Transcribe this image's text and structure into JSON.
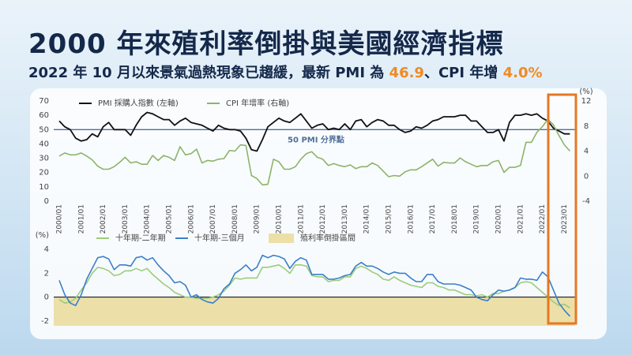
{
  "title": "2000 年來殖利率倒掛與美國經濟指標",
  "subtitle": [
    "2022 年 10 月以來景氣過熱現象已趨緩，最新 PMI 為 ",
    "46.9",
    "、CPI 年增 ",
    "4.0%"
  ],
  "chart_data": [
    {
      "type": "line",
      "x": [
        "2000/01",
        "2000/04",
        "2000/07",
        "2000/10",
        "2001/01",
        "2001/04",
        "2001/07",
        "2001/10",
        "2002/01",
        "2002/04",
        "2002/07",
        "2002/10",
        "2003/01",
        "2003/04",
        "2003/07",
        "2003/10",
        "2004/01",
        "2004/04",
        "2004/07",
        "2004/10",
        "2005/01",
        "2005/04",
        "2005/07",
        "2005/10",
        "2006/01",
        "2006/04",
        "2006/07",
        "2006/10",
        "2007/01",
        "2007/04",
        "2007/07",
        "2007/10",
        "2008/01",
        "2008/04",
        "2008/07",
        "2008/10",
        "2009/01",
        "2009/04",
        "2009/07",
        "2009/10",
        "2010/01",
        "2010/04",
        "2010/07",
        "2010/10",
        "2011/01",
        "2011/04",
        "2011/07",
        "2011/10",
        "2012/01",
        "2012/04",
        "2012/07",
        "2012/10",
        "2013/01",
        "2013/04",
        "2013/07",
        "2013/10",
        "2014/01",
        "2014/04",
        "2014/07",
        "2014/10",
        "2015/01",
        "2015/04",
        "2015/07",
        "2015/10",
        "2016/01",
        "2016/04",
        "2016/07",
        "2016/10",
        "2017/01",
        "2017/04",
        "2017/07",
        "2017/10",
        "2018/01",
        "2018/04",
        "2018/07",
        "2018/10",
        "2019/01",
        "2019/04",
        "2019/07",
        "2019/10",
        "2020/01",
        "2020/04",
        "2020/07",
        "2020/10",
        "2021/01",
        "2021/04",
        "2021/07",
        "2021/10",
        "2022/01",
        "2022/04",
        "2022/07",
        "2022/10",
        "2023/01",
        "2023/04"
      ],
      "xticks": [
        "2000/01",
        "2001/01",
        "2002/01",
        "2003/01",
        "2004/01",
        "2005/01",
        "2006/01",
        "2007/01",
        "2008/01",
        "2009/01",
        "2010/01",
        "2011/01",
        "2012/01",
        "2013/01",
        "2014/01",
        "2015/01",
        "2016/01",
        "2017/01",
        "2018/01",
        "2019/01",
        "2020/01",
        "2021/01",
        "2022/01",
        "2023/01"
      ],
      "ylim": [
        0,
        70
      ],
      "yticks": [
        0,
        10,
        20,
        30,
        40,
        50,
        60,
        70
      ],
      "y2lim": [
        -4,
        12
      ],
      "y2ticks": [
        -4,
        0,
        4,
        8,
        12
      ],
      "y2_unit": "(%)",
      "ref_line": {
        "value": 50,
        "label": "50 PMI 分界點",
        "color": "#4f6f9a"
      },
      "series": [
        {
          "name": "PMI 採購人指數 (左軸)",
          "color": "#111111",
          "values": [
            56,
            52,
            50,
            44,
            42,
            43,
            47,
            45,
            52,
            55,
            50,
            50,
            50,
            46,
            53,
            59,
            62,
            61,
            59,
            57,
            57,
            53,
            56,
            58,
            55,
            54,
            53,
            51,
            49,
            53,
            51,
            50,
            50,
            49,
            44,
            36,
            35,
            43,
            52,
            55,
            58,
            56,
            55,
            58,
            61,
            56,
            51,
            53,
            54,
            50,
            51,
            50,
            54,
            50,
            56,
            57,
            52,
            55,
            57,
            56,
            53,
            53,
            50,
            48,
            49,
            52,
            51,
            53,
            56,
            57,
            59,
            59,
            59,
            60,
            60,
            56,
            56,
            52,
            48,
            48,
            50,
            42,
            55,
            60,
            60,
            61,
            60,
            61,
            58,
            56,
            51,
            49,
            47,
            47
          ]
        },
        {
          "name": "CPI 年增率 (右軸)",
          "color": "#8db36a",
          "axis": "y2",
          "values": [
            3.2,
            3.7,
            3.4,
            3.4,
            3.7,
            3.2,
            2.6,
            1.6,
            1.1,
            1.1,
            1.5,
            2.2,
            3.0,
            2.1,
            2.3,
            1.9,
            1.9,
            3.3,
            2.5,
            3.3,
            3.0,
            2.5,
            4.7,
            3.4,
            3.6,
            4.3,
            2.1,
            2.5,
            2.4,
            2.7,
            2.8,
            4.1,
            4.0,
            5.0,
            4.9,
            0.1,
            -0.4,
            -1.4,
            -1.3,
            2.7,
            2.3,
            1.1,
            1.1,
            1.5,
            2.7,
            3.6,
            3.9,
            3.0,
            2.7,
            1.7,
            2.0,
            1.7,
            1.5,
            1.8,
            1.2,
            1.5,
            1.5,
            2.1,
            1.7,
            0.8,
            -0.1,
            0.1,
            0.0,
            0.7,
            1.0,
            1.0,
            1.5,
            2.1,
            2.7,
            1.6,
            2.2,
            2.1,
            2.1,
            2.9,
            2.3,
            1.9,
            1.5,
            1.7,
            1.7,
            2.3,
            2.5,
            0.6,
            1.4,
            1.4,
            1.7,
            5.4,
            5.4,
            7.0,
            7.9,
            9.1,
            8.2,
            6.5,
            5.0,
            4.0
          ]
        }
      ]
    },
    {
      "type": "line",
      "ylim": [
        -2.4,
        4.4
      ],
      "yticks": [
        -2,
        0,
        2,
        4
      ],
      "y_unit": "(%)",
      "band": {
        "name": "殖利率倒掛區間",
        "color": "#ecdfa8"
      },
      "series": [
        {
          "name": "十年期-二年期",
          "color": "#9ccc7a",
          "values": [
            -0.2,
            -0.5,
            -0.4,
            -0.1,
            0.6,
            1.2,
            2.0,
            2.5,
            2.4,
            2.2,
            1.8,
            1.9,
            2.2,
            2.2,
            2.4,
            2.2,
            2.4,
            1.9,
            1.5,
            1.1,
            0.8,
            0.4,
            0.2,
            0.0,
            0.0,
            -0.1,
            -0.1,
            -0.1,
            0.0,
            0.2,
            0.5,
            1.0,
            1.6,
            1.5,
            1.6,
            1.6,
            1.6,
            2.5,
            2.5,
            2.6,
            2.7,
            2.4,
            2.0,
            2.7,
            2.7,
            2.6,
            1.8,
            1.7,
            1.7,
            1.3,
            1.4,
            1.4,
            1.7,
            1.7,
            2.4,
            2.6,
            2.4,
            2.1,
            1.9,
            1.5,
            1.4,
            1.7,
            1.4,
            1.2,
            1.0,
            0.9,
            0.8,
            1.2,
            1.2,
            0.9,
            0.8,
            0.6,
            0.6,
            0.4,
            0.2,
            0.2,
            0.1,
            0.2,
            0.0,
            0.3,
            0.3,
            0.5,
            0.6,
            0.8,
            1.2,
            1.3,
            1.2,
            0.8,
            0.4,
            0.0,
            -0.4,
            -0.7,
            -0.6,
            -0.9
          ]
        },
        {
          "name": "十年期-三個月",
          "color": "#3a7fc8",
          "values": [
            1.4,
            0.2,
            -0.5,
            -0.7,
            0.2,
            1.5,
            2.4,
            3.3,
            3.4,
            3.2,
            2.3,
            2.7,
            2.7,
            2.6,
            3.3,
            3.4,
            3.1,
            3.3,
            2.7,
            2.2,
            1.8,
            1.2,
            1.3,
            1.0,
            0.0,
            0.2,
            -0.2,
            -0.4,
            -0.5,
            -0.1,
            0.7,
            1.1,
            2.0,
            2.3,
            2.7,
            2.2,
            2.5,
            3.5,
            3.3,
            3.5,
            3.4,
            3.2,
            2.4,
            3.0,
            3.3,
            3.1,
            1.9,
            1.9,
            1.9,
            1.5,
            1.5,
            1.6,
            1.8,
            1.9,
            2.6,
            2.9,
            2.6,
            2.6,
            2.4,
            2.1,
            1.9,
            2.1,
            2.0,
            2.0,
            1.6,
            1.3,
            1.3,
            1.9,
            1.9,
            1.3,
            1.1,
            1.1,
            1.1,
            1.0,
            0.8,
            0.6,
            0.0,
            -0.2,
            -0.3,
            0.2,
            0.6,
            0.5,
            0.6,
            0.8,
            1.6,
            1.5,
            1.5,
            1.4,
            2.1,
            1.7,
            0.6,
            -0.5,
            -1.1,
            -1.6
          ]
        }
      ]
    }
  ]
}
